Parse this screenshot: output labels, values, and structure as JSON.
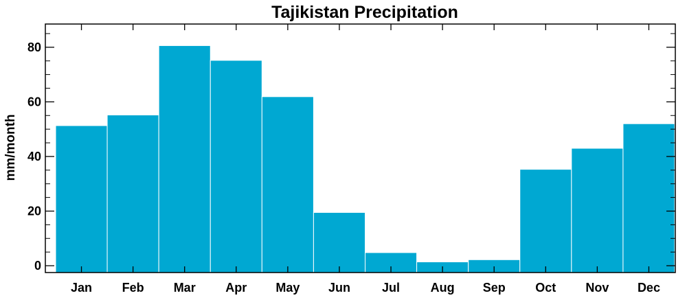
{
  "chart_data": {
    "type": "bar",
    "title": "Tajikistan Precipitation",
    "xlabel": "",
    "ylabel": "mm/month",
    "categories": [
      "Jan",
      "Feb",
      "Mar",
      "Apr",
      "May",
      "Jun",
      "Jul",
      "Aug",
      "Sep",
      "Oct",
      "Nov",
      "Dec"
    ],
    "values": [
      51.3,
      55.2,
      80.6,
      75.2,
      61.9,
      19.5,
      4.8,
      1.4,
      2.2,
      35.3,
      43.0,
      52.0
    ],
    "ylim": [
      -2.5,
      88.5
    ],
    "yticks": [
      0,
      20,
      40,
      60,
      80
    ],
    "yminor_step": 5,
    "grid": false,
    "legend": "none",
    "bar_color": "#00A8D2",
    "bar_edge_color": "#FFFFFF",
    "axis_color": "#000000"
  }
}
